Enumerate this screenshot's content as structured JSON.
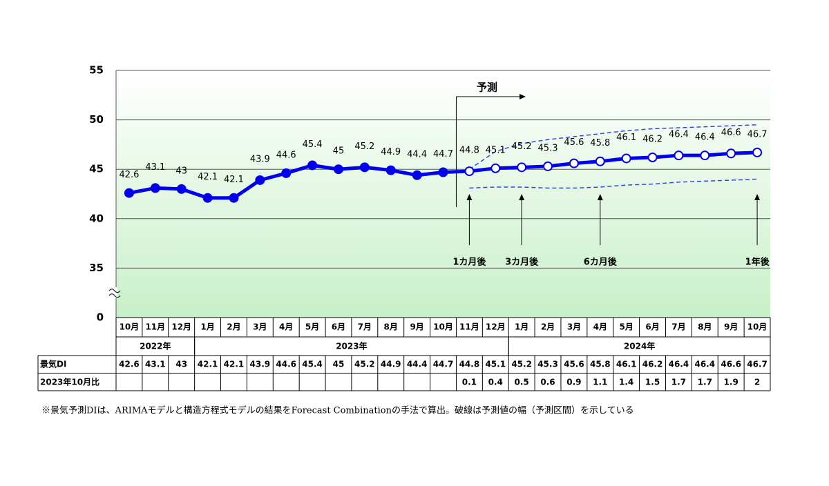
{
  "chart_data": {
    "type": "line",
    "categories": [
      "10月",
      "11月",
      "12月",
      "1月",
      "2月",
      "3月",
      "4月",
      "5月",
      "6月",
      "7月",
      "8月",
      "9月",
      "10月",
      "11月",
      "12月",
      "1月",
      "2月",
      "3月",
      "4月",
      "5月",
      "6月",
      "7月",
      "8月",
      "9月",
      "10月"
    ],
    "years": [
      {
        "label": "2022年",
        "start": 0,
        "end": 2
      },
      {
        "label": "2023年",
        "start": 3,
        "end": 14
      },
      {
        "label": "2024年",
        "start": 15,
        "end": 24
      }
    ],
    "series": [
      {
        "color": "#0000ee",
        "marker": "filled",
        "values": [
          42.6,
          43.1,
          43.0,
          42.1,
          42.1,
          43.9,
          44.6,
          45.4,
          45.0,
          45.2,
          44.9,
          44.4,
          44.7,
          null,
          null,
          null,
          null,
          null,
          null,
          null,
          null,
          null,
          null,
          null,
          null
        ]
      },
      {
        "color": "#0000ee",
        "marker": "open",
        "values": [
          null,
          null,
          null,
          null,
          null,
          null,
          null,
          null,
          null,
          null,
          null,
          null,
          null,
          44.8,
          45.1,
          45.2,
          45.3,
          45.6,
          45.8,
          46.1,
          46.2,
          46.4,
          46.4,
          46.6,
          46.7
        ]
      },
      {
        "color": "#3344ee",
        "dashed": true,
        "values": [
          null,
          null,
          null,
          null,
          null,
          null,
          null,
          null,
          null,
          null,
          null,
          null,
          null,
          45.0,
          46.8,
          47.6,
          48.0,
          48.3,
          48.6,
          48.9,
          49.1,
          49.2,
          49.3,
          49.4,
          49.5
        ]
      },
      {
        "color": "#3344ee",
        "dashed": true,
        "values": [
          null,
          null,
          null,
          null,
          null,
          null,
          null,
          null,
          null,
          null,
          null,
          null,
          null,
          43.1,
          43.2,
          43.2,
          43.1,
          43.1,
          43.2,
          43.4,
          43.5,
          43.7,
          43.8,
          43.9,
          44.0
        ]
      }
    ],
    "ylim": [
      0,
      55
    ],
    "yticks": [
      0,
      35,
      40,
      45,
      50,
      55
    ],
    "axis_break": true,
    "grid": true,
    "forecast_label": "予測",
    "horizon_labels": [
      {
        "index": 13,
        "label": "1カ月後"
      },
      {
        "index": 15,
        "label": "3カ月後"
      },
      {
        "index": 18,
        "label": "6カ月後"
      },
      {
        "index": 24,
        "label": "1年後"
      }
    ],
    "table": {
      "di_label": "景気DI",
      "change_label": "2023年10月比",
      "change_values": [
        null,
        null,
        null,
        null,
        null,
        null,
        null,
        null,
        null,
        null,
        null,
        null,
        null,
        0.1,
        0.4,
        0.5,
        0.6,
        0.9,
        1.1,
        1.4,
        1.5,
        1.7,
        1.7,
        1.9,
        2.0
      ]
    },
    "footnote": "※景気予測DIは、ARIMAモデルと構造方程式モデルの結果をForecast Combinationの手法で算出。破線は予測値の幅（予測区間）を示している"
  }
}
